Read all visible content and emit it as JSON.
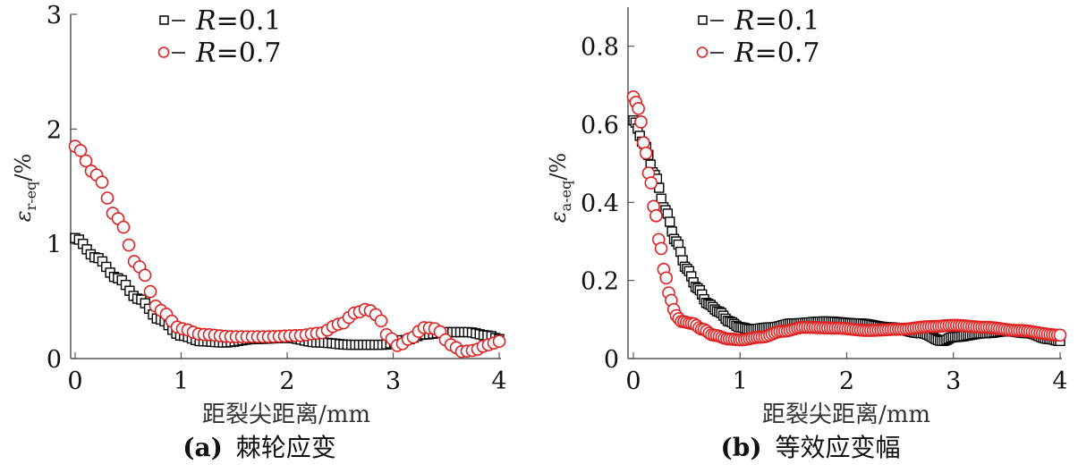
{
  "chart_data": [
    {
      "type": "scatter",
      "panel": "a",
      "caption_letter": "(a)",
      "caption_text": "棘轮应变",
      "xlabel": "距裂尖距离/mm",
      "ylabel_symbol": "ε",
      "ylabel_subscript": "r-eq",
      "ylabel_unit": "/%",
      "xlim": [
        0,
        4
      ],
      "ylim": [
        0,
        3
      ],
      "xticks": [
        0,
        1,
        2,
        3,
        4
      ],
      "yticks": [
        0,
        1,
        2,
        3
      ],
      "xtick_labels": [
        "0",
        "1",
        "2",
        "3",
        "4"
      ],
      "ytick_labels": [
        "0",
        "1",
        "2",
        "3"
      ],
      "grid": false,
      "legend_position": "top-center",
      "series": [
        {
          "name": "R=0.1",
          "legend_label": "R",
          "legend_value": "=0.1",
          "marker": "square",
          "color": "#000000",
          "n_points": 110,
          "key_points": [
            [
              0,
              1.05
            ],
            [
              0.2,
              0.88
            ],
            [
              0.4,
              0.7
            ],
            [
              0.6,
              0.52
            ],
            [
              0.8,
              0.34
            ],
            [
              1.0,
              0.2
            ],
            [
              1.2,
              0.15
            ],
            [
              1.4,
              0.14
            ],
            [
              1.7,
              0.17
            ],
            [
              2.0,
              0.18
            ],
            [
              2.3,
              0.14
            ],
            [
              2.6,
              0.12
            ],
            [
              2.9,
              0.12
            ],
            [
              3.1,
              0.16
            ],
            [
              3.3,
              0.21
            ],
            [
              3.5,
              0.23
            ],
            [
              3.7,
              0.23
            ],
            [
              3.9,
              0.2
            ],
            [
              4.0,
              0.17
            ]
          ]
        },
        {
          "name": "R=0.7",
          "legend_label": "R",
          "legend_value": "=0.7",
          "marker": "circle",
          "color": "#e02020",
          "n_points": 80,
          "key_points": [
            [
              0,
              1.85
            ],
            [
              0.2,
              1.6
            ],
            [
              0.4,
              1.22
            ],
            [
              0.6,
              0.8
            ],
            [
              0.8,
              0.42
            ],
            [
              1.0,
              0.26
            ],
            [
              1.2,
              0.21
            ],
            [
              1.5,
              0.19
            ],
            [
              1.8,
              0.19
            ],
            [
              2.1,
              0.2
            ],
            [
              2.3,
              0.22
            ],
            [
              2.5,
              0.3
            ],
            [
              2.65,
              0.4
            ],
            [
              2.75,
              0.43
            ],
            [
              2.85,
              0.38
            ],
            [
              2.95,
              0.2
            ],
            [
              3.05,
              0.11
            ],
            [
              3.15,
              0.17
            ],
            [
              3.3,
              0.27
            ],
            [
              3.4,
              0.26
            ],
            [
              3.55,
              0.12
            ],
            [
              3.65,
              0.06
            ],
            [
              3.75,
              0.07
            ],
            [
              3.9,
              0.12
            ],
            [
              4.0,
              0.15
            ]
          ]
        }
      ]
    },
    {
      "type": "scatter",
      "panel": "b",
      "caption_letter": "(b)",
      "caption_text": "等效应变幅",
      "xlabel": "距裂尖距离/mm",
      "ylabel_symbol": "ε",
      "ylabel_subscript": "a-eq",
      "ylabel_unit": "/%",
      "xlim": [
        0,
        4
      ],
      "ylim": [
        0,
        0.9
      ],
      "xticks": [
        0,
        1,
        2,
        3,
        4
      ],
      "yticks": [
        0,
        0.2,
        0.4,
        0.6,
        0.8
      ],
      "xtick_labels": [
        "0",
        "1",
        "2",
        "3",
        "4"
      ],
      "ytick_labels": [
        "0",
        "0.2",
        "0.4",
        "0.6",
        "0.8"
      ],
      "grid": false,
      "legend_position": "top-center",
      "series": [
        {
          "name": "R=0.1",
          "legend_label": "R",
          "legend_value": "=0.1",
          "marker": "square",
          "color": "#000000",
          "n_points": 200,
          "key_points": [
            [
              0,
              0.61
            ],
            [
              0.1,
              0.55
            ],
            [
              0.2,
              0.47
            ],
            [
              0.3,
              0.38
            ],
            [
              0.4,
              0.3
            ],
            [
              0.5,
              0.23
            ],
            [
              0.6,
              0.18
            ],
            [
              0.7,
              0.14
            ],
            [
              0.8,
              0.12
            ],
            [
              0.9,
              0.095
            ],
            [
              1.0,
              0.08
            ],
            [
              1.1,
              0.075
            ],
            [
              1.3,
              0.08
            ],
            [
              1.5,
              0.09
            ],
            [
              1.8,
              0.095
            ],
            [
              2.1,
              0.09
            ],
            [
              2.4,
              0.08
            ],
            [
              2.7,
              0.065
            ],
            [
              2.9,
              0.045
            ],
            [
              3.0,
              0.055
            ],
            [
              3.3,
              0.065
            ],
            [
              3.5,
              0.07
            ],
            [
              3.7,
              0.065
            ],
            [
              3.9,
              0.05
            ],
            [
              4.0,
              0.045
            ]
          ]
        },
        {
          "name": "R=0.7",
          "legend_label": "R",
          "legend_value": "=0.7",
          "marker": "circle",
          "color": "#e02020",
          "n_points": 170,
          "key_points": [
            [
              0,
              0.67
            ],
            [
              0.05,
              0.64
            ],
            [
              0.1,
              0.55
            ],
            [
              0.15,
              0.47
            ],
            [
              0.2,
              0.38
            ],
            [
              0.25,
              0.29
            ],
            [
              0.3,
              0.21
            ],
            [
              0.35,
              0.15
            ],
            [
              0.4,
              0.11
            ],
            [
              0.45,
              0.095
            ],
            [
              0.55,
              0.09
            ],
            [
              0.65,
              0.075
            ],
            [
              0.75,
              0.06
            ],
            [
              0.9,
              0.05
            ],
            [
              1.0,
              0.048
            ],
            [
              1.2,
              0.055
            ],
            [
              1.4,
              0.07
            ],
            [
              1.6,
              0.08
            ],
            [
              1.9,
              0.078
            ],
            [
              2.2,
              0.072
            ],
            [
              2.5,
              0.075
            ],
            [
              2.8,
              0.082
            ],
            [
              3.0,
              0.085
            ],
            [
              3.3,
              0.08
            ],
            [
              3.6,
              0.072
            ],
            [
              4.0,
              0.06
            ]
          ]
        }
      ]
    }
  ]
}
